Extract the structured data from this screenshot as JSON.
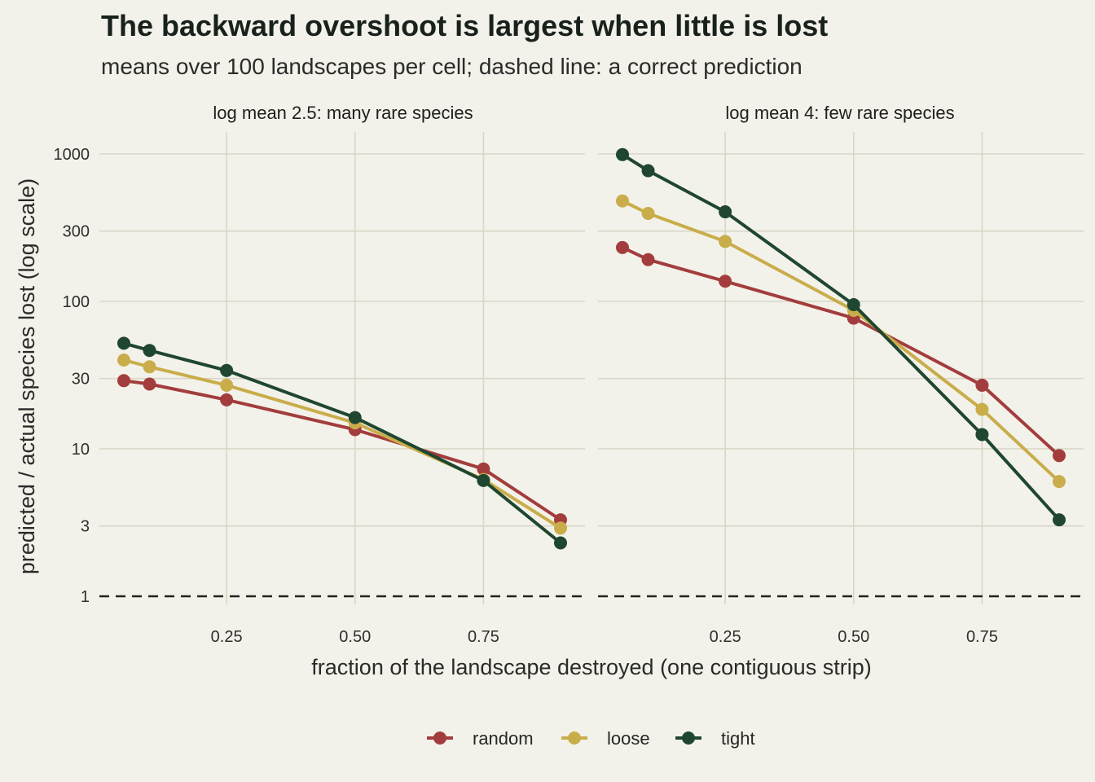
{
  "colors": {
    "random": "#a33d3d",
    "loose": "#c9ad4b",
    "tight": "#1f4630",
    "background": "#f3f2ea",
    "grid": "#d8d6c6"
  },
  "chart_data": {
    "type": "line",
    "title": "The backward overshoot is largest when little is lost",
    "subtitle": "means over 100 landscapes per cell; dashed line: a correct prediction",
    "xlabel": "fraction of the landscape destroyed (one contiguous strip)",
    "ylabel": "predicted / actual species lost (log scale)",
    "y_scale": "log",
    "ylim": [
      1,
      1000
    ],
    "xlim": [
      0.05,
      0.9
    ],
    "x_ticks": [
      "0.25",
      "0.50",
      "0.75"
    ],
    "x_tick_values": [
      0.25,
      0.5,
      0.75
    ],
    "y_ticks": [
      "1",
      "3",
      "10",
      "30",
      "100",
      "300",
      "1000"
    ],
    "y_tick_values": [
      1,
      3,
      10,
      30,
      100,
      300,
      1000
    ],
    "reference_line": {
      "y": 1,
      "style": "dashed"
    },
    "grid": true,
    "legend": {
      "position": "bottom",
      "entries": [
        "random",
        "loose",
        "tight"
      ]
    },
    "panels": [
      {
        "label": "log mean 2.5: many rare species",
        "series": [
          {
            "name": "random",
            "x": [
              0.05,
              0.1,
              0.25,
              0.5,
              0.75,
              0.9
            ],
            "y": [
              29,
              27.5,
              21.5,
              13.5,
              7.3,
              3.3
            ]
          },
          {
            "name": "loose",
            "x": [
              0.05,
              0.1,
              0.25,
              0.5,
              0.75,
              0.9
            ],
            "y": [
              40,
              36,
              27,
              15,
              6.2,
              2.9
            ]
          },
          {
            "name": "tight",
            "x": [
              0.05,
              0.1,
              0.25,
              0.5,
              0.75,
              0.9
            ],
            "y": [
              52,
              46.5,
              34,
              16.3,
              6.1,
              2.3
            ]
          }
        ]
      },
      {
        "label": "log mean 4: few rare species",
        "series": [
          {
            "name": "random",
            "x": [
              0.05,
              0.1,
              0.25,
              0.5,
              0.75,
              0.9
            ],
            "y": [
              232,
              192,
              137,
              77,
              27,
              9
            ]
          },
          {
            "name": "loose",
            "x": [
              0.05,
              0.1,
              0.25,
              0.5,
              0.75,
              0.9
            ],
            "y": [
              480,
              395,
              255,
              87,
              18.5,
              6
            ]
          },
          {
            "name": "tight",
            "x": [
              0.05,
              0.1,
              0.25,
              0.5,
              0.75,
              0.9
            ],
            "y": [
              990,
              770,
              405,
              95,
              12.5,
              3.3
            ]
          }
        ]
      }
    ]
  }
}
